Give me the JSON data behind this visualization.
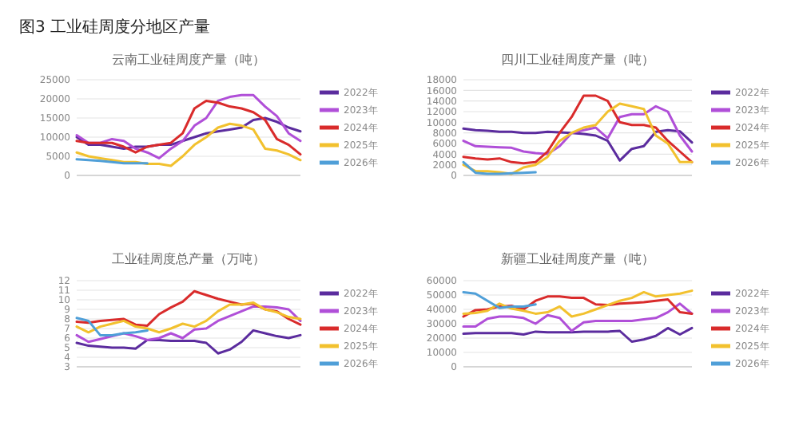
{
  "chart_data": [
    {
      "type": "line",
      "title": "云南工业硅周度产量（吨）",
      "annotations": [
        "图3 工业硅周度分地区产量"
      ],
      "categories": [
        null,
        null,
        null,
        null,
        null,
        null,
        null,
        null,
        null,
        null,
        null,
        null,
        null,
        null,
        null,
        null,
        null,
        null,
        null,
        null
      ],
      "ylim": [
        0,
        25000
      ],
      "yticks": [
        0,
        5000,
        10000,
        15000,
        20000,
        25000
      ],
      "grid": "y",
      "legend": "right",
      "series": [
        {
          "name": "2022年",
          "color": "#5b2c9e",
          "values": [
            10000,
            8000,
            8000,
            7500,
            7000,
            7500,
            7500,
            8000,
            8000,
            9000,
            10000,
            11000,
            11500,
            12000,
            12500,
            14500,
            15000,
            14000,
            12500,
            11500
          ]
        },
        {
          "name": "2023年",
          "color": "#b04fd8",
          "values": [
            10500,
            8500,
            8500,
            9500,
            9000,
            7000,
            6000,
            4500,
            7000,
            9000,
            13000,
            15000,
            19500,
            20500,
            21000,
            21000,
            18000,
            15500,
            11000,
            9000
          ]
        },
        {
          "name": "2024年",
          "color": "#d92b2b",
          "values": [
            9000,
            8500,
            8500,
            8500,
            7500,
            6000,
            7500,
            8000,
            8500,
            11000,
            17500,
            19500,
            19000,
            18000,
            17500,
            16500,
            14500,
            9500,
            8000,
            5500
          ]
        },
        {
          "name": "2025年",
          "color": "#f2c12e",
          "values": [
            6000,
            5000,
            4500,
            4000,
            3500,
            3500,
            3000,
            3000,
            2500,
            5000,
            8000,
            10000,
            12500,
            13500,
            13000,
            12000,
            7000,
            6500,
            5500,
            4000
          ]
        },
        {
          "name": "2026年",
          "color": "#4f9fd8",
          "values": [
            4200,
            4000,
            3800,
            3500,
            3200,
            3200,
            3200,
            null,
            null,
            null,
            null,
            null,
            null,
            null,
            null,
            null,
            null,
            null,
            null,
            null
          ]
        }
      ]
    },
    {
      "type": "line",
      "title": "四川工业硅周度产量（吨）",
      "categories": [
        null,
        null,
        null,
        null,
        null,
        null,
        null,
        null,
        null,
        null,
        null,
        null,
        null,
        null,
        null,
        null,
        null,
        null,
        null,
        null
      ],
      "ylim": [
        0,
        18000
      ],
      "yticks": [
        0,
        2000,
        4000,
        6000,
        8000,
        10000,
        12000,
        14000,
        16000,
        18000
      ],
      "grid": "y",
      "legend": "right",
      "series": [
        {
          "name": "2022年",
          "color": "#5b2c9e",
          "values": [
            8800,
            8500,
            8400,
            8200,
            8200,
            8000,
            8000,
            8200,
            8100,
            8000,
            7800,
            7500,
            6500,
            2800,
            5000,
            5500,
            8200,
            8500,
            8300,
            6200
          ]
        },
        {
          "name": "2023年",
          "color": "#b04fd8",
          "values": [
            6500,
            5500,
            5400,
            5300,
            5200,
            4500,
            4200,
            4000,
            5500,
            8000,
            8500,
            9000,
            7000,
            11000,
            11500,
            11500,
            13000,
            12000,
            7500,
            4500
          ]
        },
        {
          "name": "2024年",
          "color": "#d92b2b",
          "values": [
            3500,
            3200,
            3000,
            3200,
            2500,
            2300,
            2500,
            4500,
            8000,
            11000,
            15000,
            15000,
            14000,
            10000,
            9500,
            9500,
            9000,
            6500,
            4500,
            2500
          ]
        },
        {
          "name": "2025年",
          "color": "#f2c12e",
          "values": [
            2000,
            800,
            800,
            600,
            300,
            1500,
            2000,
            3500,
            6500,
            8000,
            9000,
            9500,
            12000,
            13500,
            13000,
            12500,
            7500,
            6000,
            2500,
            2500
          ]
        },
        {
          "name": "2026年",
          "color": "#4f9fd8",
          "values": [
            2500,
            500,
            300,
            300,
            400,
            500,
            600,
            null,
            null,
            null,
            null,
            null,
            null,
            null,
            null,
            null,
            null,
            null,
            null,
            null
          ]
        }
      ]
    },
    {
      "type": "line",
      "title": "工业硅周度总产量（万吨）",
      "categories": [
        null,
        null,
        null,
        null,
        null,
        null,
        null,
        null,
        null,
        null,
        null,
        null,
        null,
        null,
        null,
        null,
        null,
        null,
        null,
        null
      ],
      "ylim": [
        3,
        12
      ],
      "yticks": [
        3,
        4,
        5,
        6,
        7,
        8,
        9,
        10,
        11,
        12
      ],
      "grid": "y",
      "legend": "right",
      "series": [
        {
          "name": "2022年",
          "color": "#5b2c9e",
          "values": [
            5.5,
            5.2,
            5.1,
            5.0,
            5.0,
            4.9,
            5.8,
            5.8,
            5.7,
            5.7,
            5.7,
            5.5,
            4.4,
            4.8,
            5.6,
            6.8,
            6.5,
            6.2,
            6.0,
            6.3
          ]
        },
        {
          "name": "2023年",
          "color": "#b04fd8",
          "values": [
            6.3,
            5.6,
            5.9,
            6.2,
            6.5,
            6.2,
            5.8,
            6.0,
            6.5,
            6.0,
            6.9,
            7.0,
            7.8,
            8.3,
            8.8,
            9.3,
            9.3,
            9.2,
            9.0,
            7.8
          ]
        },
        {
          "name": "2024年",
          "color": "#d92b2b",
          "values": [
            7.7,
            7.6,
            7.8,
            7.9,
            8.0,
            7.4,
            7.3,
            8.5,
            9.2,
            9.8,
            10.9,
            10.5,
            10.1,
            9.8,
            9.5,
            9.6,
            9.0,
            8.8,
            8.0,
            7.4
          ]
        },
        {
          "name": "2025年",
          "color": "#f2c12e",
          "values": [
            7.2,
            6.6,
            7.2,
            7.5,
            7.8,
            7.2,
            7.0,
            6.6,
            7.0,
            7.5,
            7.2,
            7.8,
            8.8,
            9.5,
            9.5,
            9.7,
            9.0,
            8.7,
            8.2,
            8.0
          ]
        },
        {
          "name": "2026年",
          "color": "#4f9fd8",
          "values": [
            8.1,
            7.8,
            6.3,
            6.3,
            6.5,
            6.6,
            6.8,
            null,
            null,
            null,
            null,
            null,
            null,
            null,
            null,
            null,
            null,
            null,
            null,
            null
          ]
        }
      ]
    },
    {
      "type": "line",
      "title": "新疆工业硅周度产量（吨）",
      "categories": [
        null,
        null,
        null,
        null,
        null,
        null,
        null,
        null,
        null,
        null,
        null,
        null,
        null,
        null,
        null,
        null,
        null,
        null,
        null,
        null
      ],
      "ylim": [
        0,
        60000
      ],
      "yticks": [
        0,
        10000,
        20000,
        30000,
        40000,
        50000,
        60000
      ],
      "grid": "y",
      "legend": "right",
      "series": [
        {
          "name": "2022年",
          "color": "#5b2c9e",
          "values": [
            23000,
            23500,
            23500,
            23500,
            23500,
            22500,
            24500,
            24000,
            24000,
            24000,
            24500,
            24500,
            24500,
            25000,
            17500,
            19000,
            21500,
            27000,
            22500,
            27000
          ]
        },
        {
          "name": "2023年",
          "color": "#b04fd8",
          "values": [
            28000,
            28000,
            33500,
            35000,
            35000,
            34000,
            30000,
            36000,
            34000,
            25000,
            31000,
            32000,
            32000,
            32000,
            32000,
            33000,
            34000,
            38000,
            44000,
            37000
          ]
        },
        {
          "name": "2024年",
          "color": "#d92b2b",
          "values": [
            35000,
            39500,
            40000,
            42000,
            42500,
            40000,
            46000,
            49000,
            49000,
            48000,
            48000,
            43500,
            43000,
            44000,
            44500,
            45000,
            46000,
            47000,
            38000,
            37000
          ]
        },
        {
          "name": "2025年",
          "color": "#f2c12e",
          "values": [
            37000,
            37500,
            39000,
            44000,
            40500,
            39000,
            37000,
            38000,
            42000,
            35000,
            37000,
            40000,
            43000,
            46000,
            48000,
            52000,
            49000,
            50000,
            51000,
            53000
          ]
        },
        {
          "name": "2026年",
          "color": "#4f9fd8",
          "values": [
            52000,
            51000,
            46000,
            41000,
            42000,
            42000,
            43500,
            null,
            null,
            null,
            null,
            null,
            null,
            null,
            null,
            null,
            null,
            null,
            null,
            null
          ]
        }
      ]
    }
  ]
}
